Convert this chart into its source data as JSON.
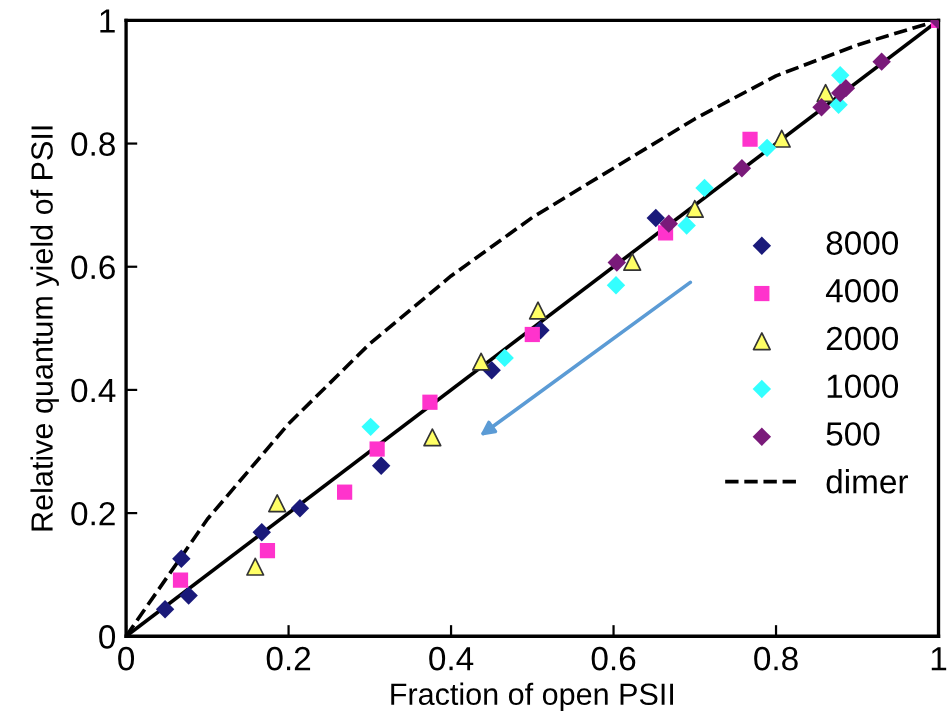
{
  "chart_data": {
    "type": "scatter",
    "xlabel": "Fraction of open PSII",
    "ylabel": "Relative quantum yield of PSII",
    "xlim": [
      0,
      1
    ],
    "ylim": [
      0,
      1
    ],
    "xticks": [
      0,
      0.2,
      0.4,
      0.6,
      0.8,
      1
    ],
    "yticks": [
      0,
      0.2,
      0.4,
      0.6,
      0.8,
      1
    ],
    "grid": false,
    "legend": "right",
    "series": [
      {
        "name": "8000",
        "color": "#1a1a7a",
        "marker": "diamond",
        "x": [
          0.048,
          0.068,
          0.077,
          0.167,
          0.214,
          0.314,
          0.45,
          0.51,
          0.652
        ],
        "values": [
          0.044,
          0.126,
          0.066,
          0.169,
          0.208,
          0.277,
          0.432,
          0.497,
          0.679
        ]
      },
      {
        "name": "4000",
        "color": "#ff33cc",
        "marker": "square",
        "x": [
          0.067,
          0.174,
          0.269,
          0.309,
          0.374,
          0.5,
          0.664,
          0.768,
          1.0
        ],
        "values": [
          0.091,
          0.139,
          0.234,
          0.304,
          0.38,
          0.49,
          0.655,
          0.807,
          1.0
        ]
      },
      {
        "name": "2000",
        "color": "#ffff66",
        "marker": "triangle",
        "x": [
          0.159,
          0.186,
          0.377,
          0.437,
          0.507,
          0.623,
          0.7,
          0.807,
          0.861
        ],
        "values": [
          0.113,
          0.216,
          0.323,
          0.446,
          0.529,
          0.608,
          0.694,
          0.808,
          0.882
        ]
      },
      {
        "name": "1000",
        "color": "#33ffff",
        "marker": "diamond",
        "x": [
          0.301,
          0.466,
          0.603,
          0.69,
          0.712,
          0.789,
          0.877,
          0.879
        ],
        "values": [
          0.34,
          0.452,
          0.57,
          0.667,
          0.728,
          0.793,
          0.863,
          0.911
        ]
      },
      {
        "name": "500",
        "color": "#7a1a7a",
        "marker": "diamond",
        "x": [
          0.604,
          0.668,
          0.758,
          0.856,
          0.879,
          0.886,
          0.93,
          1.0
        ],
        "values": [
          0.607,
          0.67,
          0.76,
          0.859,
          0.882,
          0.89,
          0.933,
          1.0
        ]
      },
      {
        "name": "dimer",
        "type": "line",
        "color": "#000000",
        "line_style": "dashed",
        "marker": "none",
        "x": [
          0,
          0.1,
          0.2,
          0.3,
          0.4,
          0.5,
          0.6,
          0.7,
          0.8,
          0.9,
          1.0
        ],
        "values": [
          0,
          0.19,
          0.345,
          0.475,
          0.585,
          0.68,
          0.76,
          0.84,
          0.91,
          0.96,
          1.0
        ]
      },
      {
        "type": "line",
        "color": "#000000",
        "line_style": "solid",
        "marker": "none",
        "x": [
          0,
          1
        ],
        "values": [
          0,
          1
        ]
      }
    ]
  }
}
